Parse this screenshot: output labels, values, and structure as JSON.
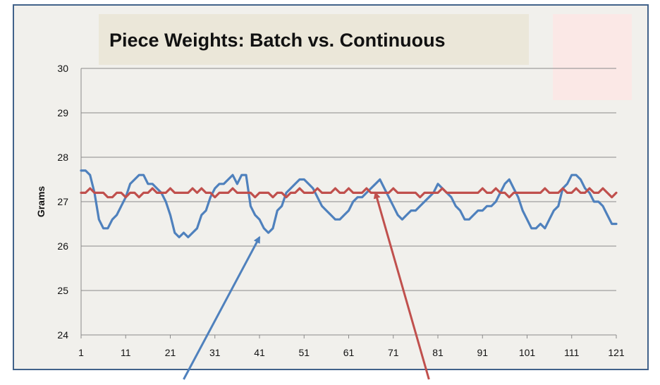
{
  "chart_data": {
    "type": "line",
    "title": "Piece Weights:  Batch vs. Continuous",
    "xlabel": "",
    "ylabel": "Grams",
    "xlim": [
      1,
      121
    ],
    "ylim": [
      24,
      30
    ],
    "yticks": [
      24,
      25,
      26,
      27,
      28,
      29,
      30
    ],
    "xticks": [
      1,
      11,
      21,
      31,
      41,
      51,
      61,
      71,
      81,
      91,
      101,
      111,
      121
    ],
    "grid": true,
    "legend": "none",
    "series": [
      {
        "color": "#4f81bd",
        "values": [
          27.7,
          27.7,
          27.6,
          27.2,
          26.6,
          26.4,
          26.4,
          26.6,
          26.7,
          26.9,
          27.1,
          27.4,
          27.5,
          27.6,
          27.6,
          27.4,
          27.4,
          27.3,
          27.2,
          27.0,
          26.7,
          26.3,
          26.2,
          26.3,
          26.2,
          26.3,
          26.4,
          26.7,
          26.8,
          27.1,
          27.3,
          27.4,
          27.4,
          27.5,
          27.6,
          27.4,
          27.6,
          27.6,
          26.9,
          26.7,
          26.6,
          26.4,
          26.3,
          26.4,
          26.8,
          26.9,
          27.2,
          27.3,
          27.4,
          27.5,
          27.5,
          27.4,
          27.3,
          27.1,
          26.9,
          26.8,
          26.7,
          26.6,
          26.6,
          26.7,
          26.8,
          27.0,
          27.1,
          27.1,
          27.2,
          27.3,
          27.4,
          27.5,
          27.3,
          27.1,
          26.9,
          26.7,
          26.6,
          26.7,
          26.8,
          26.8,
          26.9,
          27.0,
          27.1,
          27.2,
          27.4,
          27.3,
          27.2,
          27.1,
          26.9,
          26.8,
          26.6,
          26.6,
          26.7,
          26.8,
          26.8,
          26.9,
          26.9,
          27.0,
          27.2,
          27.4,
          27.5,
          27.3,
          27.1,
          26.8,
          26.6,
          26.4,
          26.4,
          26.5,
          26.4,
          26.6,
          26.8,
          26.9,
          27.3,
          27.4,
          27.6,
          27.6,
          27.5,
          27.3,
          27.2,
          27.0,
          27.0,
          26.9,
          26.7,
          26.5,
          26.5
        ]
      },
      {
        "color": "#c0504d",
        "values": [
          27.2,
          27.2,
          27.3,
          27.2,
          27.2,
          27.2,
          27.1,
          27.1,
          27.2,
          27.2,
          27.1,
          27.2,
          27.2,
          27.1,
          27.2,
          27.2,
          27.3,
          27.2,
          27.2,
          27.2,
          27.3,
          27.2,
          27.2,
          27.2,
          27.2,
          27.3,
          27.2,
          27.3,
          27.2,
          27.2,
          27.1,
          27.2,
          27.2,
          27.2,
          27.3,
          27.2,
          27.2,
          27.2,
          27.2,
          27.1,
          27.2,
          27.2,
          27.2,
          27.1,
          27.2,
          27.2,
          27.1,
          27.2,
          27.2,
          27.3,
          27.2,
          27.2,
          27.2,
          27.3,
          27.2,
          27.2,
          27.2,
          27.3,
          27.2,
          27.2,
          27.3,
          27.2,
          27.2,
          27.2,
          27.3,
          27.2,
          27.2,
          27.2,
          27.2,
          27.2,
          27.3,
          27.2,
          27.2,
          27.2,
          27.2,
          27.2,
          27.1,
          27.2,
          27.2,
          27.2,
          27.2,
          27.3,
          27.2,
          27.2,
          27.2,
          27.2,
          27.2,
          27.2,
          27.2,
          27.2,
          27.3,
          27.2,
          27.2,
          27.3,
          27.2,
          27.2,
          27.1,
          27.2,
          27.2,
          27.2,
          27.2,
          27.2,
          27.2,
          27.2,
          27.3,
          27.2,
          27.2,
          27.2,
          27.3,
          27.2,
          27.2,
          27.3,
          27.2,
          27.2,
          27.3,
          27.2,
          27.2,
          27.3,
          27.2,
          27.1,
          27.2
        ]
      }
    ],
    "annotations": [
      {
        "type": "arrow",
        "color": "#4f81bd",
        "from": [
          24,
          23.0
        ],
        "to": [
          41,
          26.2
        ]
      },
      {
        "type": "arrow",
        "color": "#c0504d",
        "from": [
          79,
          23.0
        ],
        "to": [
          67,
          27.2
        ]
      }
    ]
  }
}
